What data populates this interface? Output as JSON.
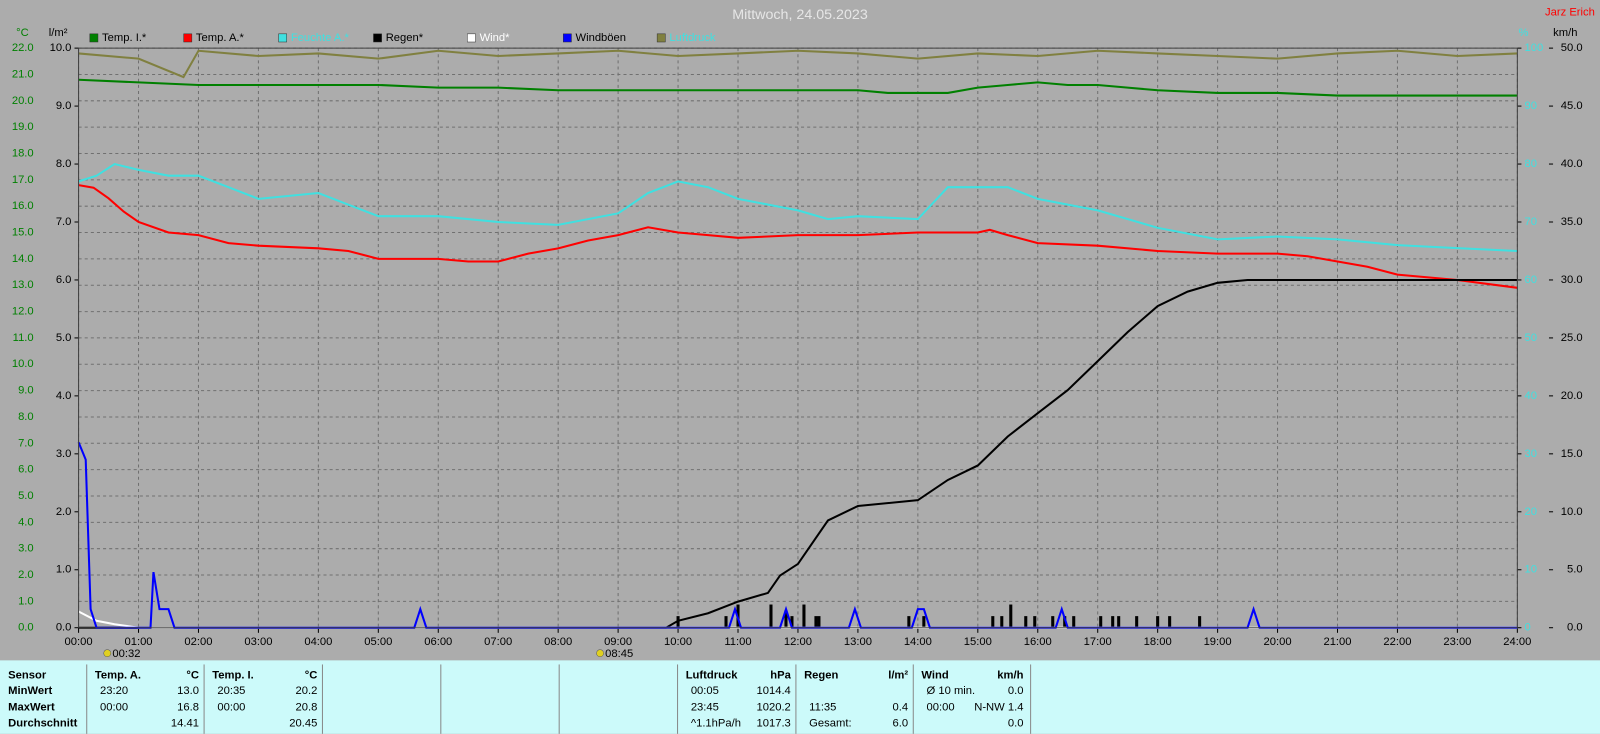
{
  "chart_data": {
    "type": "line",
    "title": "Mittwoch, 24.05.2023",
    "author": "Jarz Erich",
    "y_label": "°C",
    "y2_label": "l/m²",
    "y3_label": "%",
    "y4_label": "km/h",
    "xlim": [
      0,
      24
    ],
    "xticks": [
      {
        "value": 0,
        "label": "00:00"
      },
      {
        "value": 1,
        "label": "01:00"
      },
      {
        "value": 2,
        "label": "02:00"
      },
      {
        "value": 3,
        "label": "03:00"
      },
      {
        "value": 4,
        "label": "04:00"
      },
      {
        "value": 5,
        "label": "05:00"
      },
      {
        "value": 6,
        "label": "06:00"
      },
      {
        "value": 7,
        "label": "07:00"
      },
      {
        "value": 8,
        "label": "08:00"
      },
      {
        "value": 9,
        "label": "09:00"
      },
      {
        "value": 10,
        "label": "10:00"
      },
      {
        "value": 11,
        "label": "11:00"
      },
      {
        "value": 12,
        "label": "12:00"
      },
      {
        "value": 13,
        "label": "13:00"
      },
      {
        "value": 14,
        "label": "14:00"
      },
      {
        "value": 15,
        "label": "15:00"
      },
      {
        "value": 16,
        "label": "16:00"
      },
      {
        "value": 17,
        "label": "17:00"
      },
      {
        "value": 18,
        "label": "18:00"
      },
      {
        "value": 19,
        "label": "19:00"
      },
      {
        "value": 20,
        "label": "20:00"
      },
      {
        "value": 21,
        "label": "21:00"
      },
      {
        "value": 22,
        "label": "22:00"
      },
      {
        "value": 23,
        "label": "23:00"
      },
      {
        "value": 24,
        "label": "24:00"
      }
    ],
    "ylim": [
      0,
      22
    ],
    "yticks": [
      {
        "value": 0,
        "label": "0.0"
      },
      {
        "value": 1,
        "label": "1.0"
      },
      {
        "value": 2,
        "label": "2.0"
      },
      {
        "value": 3,
        "label": "3.0"
      },
      {
        "value": 4,
        "label": "4.0"
      },
      {
        "value": 5,
        "label": "5.0"
      },
      {
        "value": 6,
        "label": "6.0"
      },
      {
        "value": 7,
        "label": "7.0"
      },
      {
        "value": 8,
        "label": "8.0"
      },
      {
        "value": 9,
        "label": "9.0"
      },
      {
        "value": 10,
        "label": "10.0"
      },
      {
        "value": 11,
        "label": "11.0"
      },
      {
        "value": 12,
        "label": "12.0"
      },
      {
        "value": 13,
        "label": "13.0"
      },
      {
        "value": 14,
        "label": "14.0"
      },
      {
        "value": 15,
        "label": "15.0"
      },
      {
        "value": 16,
        "label": "16.0"
      },
      {
        "value": 17,
        "label": "17.0"
      },
      {
        "value": 18,
        "label": "18.0"
      },
      {
        "value": 19,
        "label": "19.0"
      },
      {
        "value": 20,
        "label": "20.0"
      },
      {
        "value": 21,
        "label": "21.0"
      },
      {
        "value": 22,
        "label": "22.0"
      }
    ],
    "y2lim": [
      0,
      10
    ],
    "y2ticks": [
      {
        "value": 0,
        "label": "0.0"
      },
      {
        "value": 1,
        "label": "1.0"
      },
      {
        "value": 2,
        "label": "2.0"
      },
      {
        "value": 3,
        "label": "3.0"
      },
      {
        "value": 4,
        "label": "4.0"
      },
      {
        "value": 5,
        "label": "5.0"
      },
      {
        "value": 6,
        "label": "6.0"
      },
      {
        "value": 7,
        "label": "7.0"
      },
      {
        "value": 8,
        "label": "8.0"
      },
      {
        "value": 9,
        "label": "9.0"
      },
      {
        "value": 10,
        "label": "10.0"
      }
    ],
    "y3lim": [
      0,
      100
    ],
    "y3ticks": [
      0,
      10,
      20,
      30,
      40,
      50,
      60,
      70,
      80,
      90,
      100
    ],
    "y4lim": [
      0,
      50
    ],
    "y4ticks": [
      {
        "value": 0,
        "label": "0.0"
      },
      {
        "value": 5,
        "label": "5.0"
      },
      {
        "value": 10,
        "label": "10.0"
      },
      {
        "value": 15,
        "label": "15.0"
      },
      {
        "value": 20,
        "label": "20.0"
      },
      {
        "value": 25,
        "label": "25.0"
      },
      {
        "value": 30,
        "label": "30.0"
      },
      {
        "value": 35,
        "label": "35.0"
      },
      {
        "value": 40,
        "label": "40.0"
      },
      {
        "value": 45,
        "label": "45.0"
      },
      {
        "value": 50,
        "label": "50.0"
      }
    ],
    "grid": true,
    "series": [
      {
        "name": "Temp. I.*",
        "color": "#008000",
        "axis": "y",
        "x": [
          0,
          1,
          2,
          3,
          4,
          5,
          6,
          7,
          8,
          9,
          10,
          11,
          12,
          13,
          13.5,
          14,
          14.5,
          15,
          15.5,
          16,
          16.5,
          17,
          17.5,
          18,
          19,
          20,
          21,
          22,
          23,
          24
        ],
        "values": [
          20.8,
          20.7,
          20.6,
          20.6,
          20.6,
          20.6,
          20.5,
          20.5,
          20.4,
          20.4,
          20.4,
          20.4,
          20.4,
          20.4,
          20.3,
          20.3,
          20.3,
          20.5,
          20.6,
          20.7,
          20.6,
          20.6,
          20.5,
          20.4,
          20.3,
          20.3,
          20.2,
          20.2,
          20.2,
          20.2
        ]
      },
      {
        "name": "Temp. A.*",
        "color": "#ff0000",
        "axis": "y",
        "x": [
          0,
          0.25,
          0.5,
          0.75,
          1,
          1.5,
          2,
          2.5,
          3,
          4,
          4.5,
          5,
          5.5,
          6,
          6.5,
          7,
          7.5,
          8,
          8.5,
          9,
          9.5,
          10,
          10.5,
          11,
          12,
          13,
          14,
          15,
          15.2,
          15.5,
          16,
          17,
          18,
          19,
          20,
          20.5,
          21,
          21.5,
          22,
          23,
          24
        ],
        "values": [
          16.8,
          16.7,
          16.3,
          15.8,
          15.4,
          15.0,
          14.9,
          14.6,
          14.5,
          14.4,
          14.3,
          14.0,
          14.0,
          14.0,
          13.9,
          13.9,
          14.2,
          14.4,
          14.7,
          14.9,
          15.2,
          15.0,
          14.9,
          14.8,
          14.9,
          14.9,
          15.0,
          15.0,
          15.1,
          14.9,
          14.6,
          14.5,
          14.3,
          14.2,
          14.2,
          14.1,
          13.9,
          13.7,
          13.4,
          13.2,
          12.9
        ]
      },
      {
        "name": "Feuchte A.*",
        "color": "#40e0e0",
        "axis": "y3",
        "x": [
          0,
          0.3,
          0.6,
          1,
          1.5,
          2,
          2.5,
          3,
          4,
          4.5,
          5,
          6,
          7,
          8,
          9,
          9.5,
          10,
          10.5,
          11,
          12,
          12.5,
          13,
          14,
          14.5,
          15,
          15.5,
          16,
          16.5,
          17,
          18,
          19,
          20,
          21,
          22,
          23,
          24
        ],
        "values": [
          77,
          78,
          80,
          79,
          78,
          78,
          76,
          74,
          75,
          73,
          71,
          71,
          70,
          69.5,
          71.5,
          75,
          77,
          76,
          74,
          72,
          70.5,
          71,
          70.5,
          76,
          76,
          76,
          74,
          73,
          72,
          69,
          67,
          67.5,
          67,
          66,
          65.5,
          65
        ]
      },
      {
        "name": "Regen*",
        "color": "#000000",
        "axis": "y2",
        "x": [
          0,
          9.8,
          10,
          10.5,
          11,
          11.5,
          11.7,
          12,
          12.5,
          13,
          14,
          14.5,
          15,
          15.5,
          16,
          16.5,
          17,
          17.5,
          18,
          18.5,
          19,
          19.5,
          24
        ],
        "values": [
          0,
          0,
          0.12,
          0.25,
          0.45,
          0.6,
          0.9,
          1.1,
          1.85,
          2.1,
          2.2,
          2.55,
          2.8,
          3.3,
          3.7,
          4.1,
          4.6,
          5.1,
          5.55,
          5.8,
          5.95,
          6.0,
          6.0
        ],
        "bar_x": [
          10.0,
          10.8,
          11.0,
          11.55,
          11.8,
          11.9,
          12.1,
          12.3,
          12.35,
          13.85,
          14.1,
          15.25,
          15.4,
          15.55,
          15.8,
          15.95,
          16.25,
          16.45,
          16.6,
          17.05,
          17.25,
          17.35,
          17.65,
          18.0,
          18.2,
          18.7
        ],
        "bars": [
          0.2,
          0.2,
          0.4,
          0.4,
          0.3,
          0.2,
          0.4,
          0.2,
          0.2,
          0.2,
          0.2,
          0.2,
          0.2,
          0.4,
          0.2,
          0.2,
          0.2,
          0.2,
          0.2,
          0.2,
          0.2,
          0.2,
          0.2,
          0.2,
          0.2,
          0.2
        ]
      },
      {
        "name": "Wind*",
        "color": "#ffffff",
        "axis": "y4",
        "x": [
          0,
          0.3,
          0.6,
          1,
          24
        ],
        "values": [
          1.4,
          0.6,
          0.3,
          0,
          0
        ]
      },
      {
        "name": "Windböen",
        "color": "#0000ff",
        "axis": "y4",
        "x": [
          0,
          0.08,
          0.12,
          0.2,
          0.3,
          1.2,
          1.25,
          1.35,
          1.5,
          1.6,
          5.6,
          5.7,
          5.8,
          10.85,
          10.95,
          11.05,
          11.7,
          11.8,
          11.9,
          12.85,
          12.95,
          13.05,
          13.9,
          14.0,
          14.1,
          14.2,
          16.3,
          16.4,
          16.5,
          19.5,
          19.6,
          19.7,
          24
        ],
        "values": [
          16,
          15,
          14.5,
          1.6,
          0,
          0,
          4.8,
          1.6,
          1.6,
          0,
          0,
          1.6,
          0,
          0,
          1.6,
          0,
          0,
          1.6,
          0,
          0,
          1.6,
          0,
          0,
          1.6,
          1.6,
          0,
          0,
          1.6,
          0,
          0,
          1.6,
          0,
          0
        ]
      },
      {
        "name": "Luftdruck",
        "color": "#808040",
        "axis": "y",
        "x": [
          0,
          1,
          1.75,
          2,
          3,
          4,
          5,
          6,
          7,
          8,
          9,
          10,
          11,
          12,
          13,
          14,
          15,
          16,
          17,
          18,
          19,
          20,
          21,
          22,
          23,
          24
        ],
        "values": [
          21.8,
          21.6,
          20.9,
          21.9,
          21.7,
          21.8,
          21.6,
          21.9,
          21.7,
          21.8,
          21.9,
          21.7,
          21.8,
          21.9,
          21.8,
          21.6,
          21.8,
          21.7,
          21.9,
          21.8,
          21.7,
          21.6,
          21.8,
          21.9,
          21.7,
          21.8
        ]
      }
    ],
    "annotations": [
      {
        "x": 0.53,
        "label": "00:32"
      },
      {
        "x": 8.75,
        "label": "08:45"
      }
    ]
  },
  "stats": {
    "row_labels": [
      "Sensor",
      "MinWert",
      "MaxWert",
      "Durchschnitt"
    ],
    "blocks": [
      {
        "header": "Temp. A.",
        "unit": "°C",
        "rows": [
          {
            "time": "23:20",
            "value": "13.0"
          },
          {
            "time": "00:00",
            "value": "16.8"
          },
          {
            "value": "14.41"
          }
        ]
      },
      {
        "header": "Temp. I.",
        "unit": "°C",
        "rows": [
          {
            "time": "20:35",
            "value": "20.2"
          },
          {
            "time": "00:00",
            "value": "20.8"
          },
          {
            "value": "20.45"
          }
        ]
      },
      {
        "header": "Luftdruck",
        "unit": "hPa",
        "rows": [
          {
            "time": "00:05",
            "value": "1014.4"
          },
          {
            "time": "23:45",
            "value": "1020.2"
          },
          {
            "time": "^1.1hPa/h",
            "value": "1017.3"
          }
        ]
      },
      {
        "header": "Regen",
        "unit": "l/m²",
        "rows": [
          null,
          {
            "time": "11:35",
            "value": "0.4"
          },
          {
            "time": "Gesamt:",
            "value": "6.0"
          }
        ]
      },
      {
        "header": "Wind",
        "unit": "km/h",
        "rows": [
          {
            "time": "Ø 10 min.",
            "value": "0.0"
          },
          {
            "time": "00:00",
            "value": "N-NW 1.4"
          },
          {
            "value": "0.0"
          }
        ]
      }
    ]
  }
}
